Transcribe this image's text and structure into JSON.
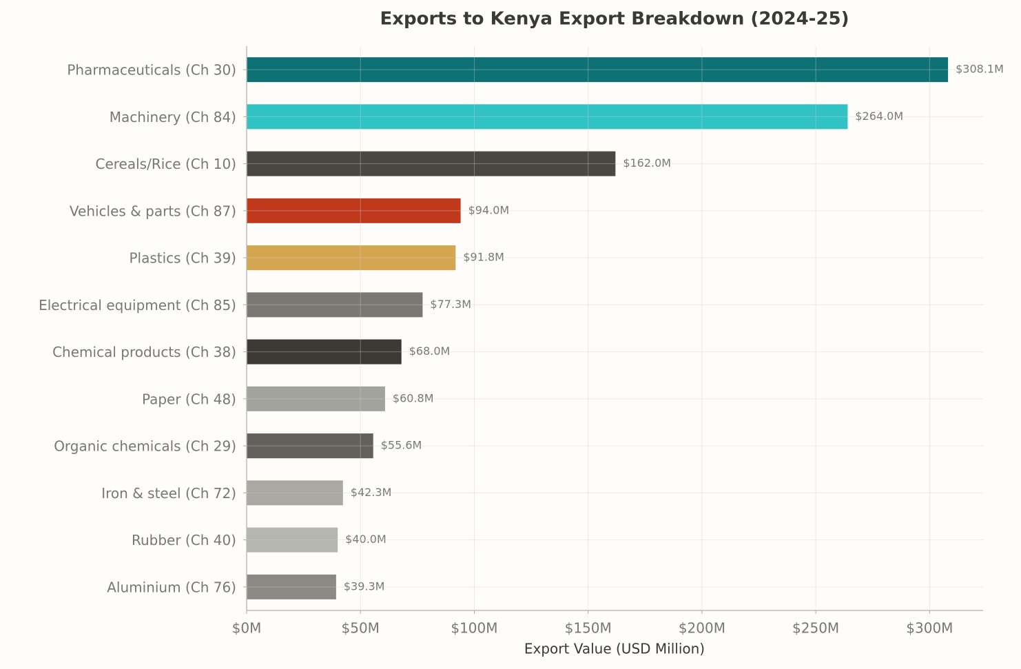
{
  "chart_data": {
    "type": "hbar",
    "title": "Exports to Kenya Export Breakdown (2024-25)",
    "xlabel": "Export Value (USD Million)",
    "categories": [
      "Pharmaceuticals (Ch 30)",
      "Machinery (Ch 84)",
      "Cereals/Rice (Ch 10)",
      "Vehicles & parts (Ch 87)",
      "Plastics (Ch 39)",
      "Electrical equipment (Ch 85)",
      "Chemical products (Ch 38)",
      "Paper (Ch 48)",
      "Organic chemicals (Ch 29)",
      "Iron & steel (Ch 72)",
      "Rubber (Ch 40)",
      "Aluminium (Ch 76)"
    ],
    "values": [
      308.1,
      264.0,
      162.0,
      94.0,
      91.8,
      77.3,
      68.0,
      60.8,
      55.6,
      42.3,
      40.0,
      39.3
    ],
    "value_labels": [
      "$308.1M",
      "$264.0M",
      "$162.0M",
      "$94.0M",
      "$91.8M",
      "$77.3M",
      "$68.0M",
      "$60.8M",
      "$55.6M",
      "$42.3M",
      "$40.0M",
      "$39.3M"
    ],
    "colors": [
      "#0e7174",
      "#31c3c3",
      "#4a4640",
      "#c0391c",
      "#d4a651",
      "#7a7873",
      "#3b3a35",
      "#a3a39d",
      "#62615c",
      "#a9a8a2",
      "#b6b6b0",
      "#8a8983"
    ],
    "xlim": [
      0,
      323.5
    ],
    "xticks": [
      {
        "value": 0,
        "label": "$0M"
      },
      {
        "value": 50,
        "label": "$50M"
      },
      {
        "value": 100,
        "label": "$100M"
      },
      {
        "value": 150,
        "label": "$150M"
      },
      {
        "value": 200,
        "label": "$200M"
      },
      {
        "value": 250,
        "label": "$250M"
      },
      {
        "value": 300,
        "label": "$300M"
      }
    ],
    "grid": true
  }
}
